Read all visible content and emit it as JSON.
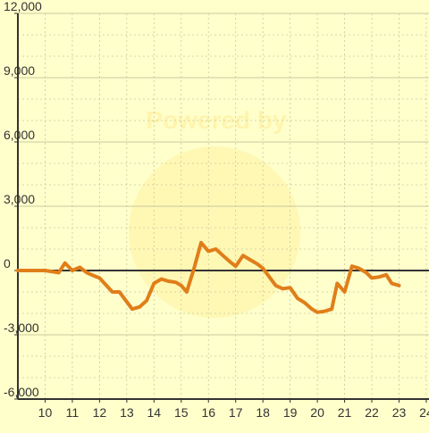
{
  "chart_data": {
    "type": "line",
    "title": "",
    "xlabel": "",
    "ylabel": "",
    "xlim": [
      9.0,
      24.1
    ],
    "ylim": [
      -6000,
      12000
    ],
    "x_ticks": [
      10,
      11,
      12,
      13,
      14,
      15,
      16,
      17,
      18,
      19,
      20,
      21,
      22,
      23,
      24
    ],
    "y_ticks": [
      -6000,
      -3000,
      0,
      3000,
      6000,
      9000,
      12000
    ],
    "y_tick_labels": [
      "-6,000",
      "-3,000",
      "0",
      "3,000",
      "6,000",
      "9,000",
      "12,000"
    ],
    "grid": true,
    "legend": "none",
    "watermark": "Powered by",
    "colors": {
      "background": "#ffffcc",
      "grid": "#c8c8a0",
      "axis": "#333333",
      "line": "#e07e1a"
    },
    "series": [
      {
        "x": [
          9.0,
          10.0,
          10.5,
          10.73,
          11.0,
          11.27,
          11.53,
          11.8,
          12.0,
          12.47,
          12.73,
          13.2,
          13.47,
          13.73,
          14.0,
          14.27,
          14.53,
          14.8,
          15.0,
          15.2,
          15.47,
          15.73,
          16.0,
          16.27,
          16.53,
          16.8,
          17.0,
          17.27,
          17.53,
          17.8,
          18.0,
          18.47,
          18.73,
          19.0,
          19.27,
          19.53,
          19.8,
          20.0,
          20.27,
          20.53,
          20.73,
          21.0,
          21.27,
          21.53,
          21.8,
          22.0,
          22.27,
          22.53,
          22.73,
          23.0
        ],
        "y": [
          0,
          0,
          -100,
          350,
          0,
          150,
          -100,
          -250,
          -350,
          -1000,
          -1000,
          -1800,
          -1700,
          -1400,
          -600,
          -400,
          -500,
          -550,
          -700,
          -1000,
          100,
          1300,
          900,
          1000,
          700,
          400,
          200,
          700,
          500,
          300,
          100,
          -700,
          -850,
          -800,
          -1300,
          -1500,
          -1800,
          -1950,
          -1900,
          -1800,
          -600,
          -1000,
          200,
          100,
          -100,
          -350,
          -300,
          -200,
          -600,
          -700
        ]
      }
    ]
  }
}
